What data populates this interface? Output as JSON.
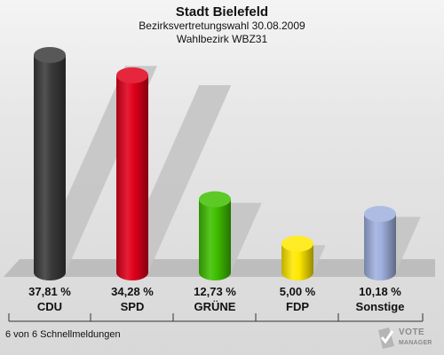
{
  "header": {
    "title": "Stadt Bielefeld",
    "subtitle": "Bezirksvertretungswahl 30.08.2009",
    "district": "Wahlbezirk WBZ31"
  },
  "footer": {
    "note": "6 von 6 Schnellmeldungen"
  },
  "brand": {
    "line1": "VOTE",
    "line2": "MANAGER"
  },
  "chart_data": {
    "type": "bar",
    "categories": [
      "CDU",
      "SPD",
      "GRÜNE",
      "FDP",
      "Sonstige"
    ],
    "values": [
      37.81,
      34.28,
      12.73,
      5.0,
      10.18
    ],
    "value_labels": [
      "37,81 %",
      "34,28 %",
      "12,73 %",
      "5,00 %",
      "10,18 %"
    ],
    "colors": [
      "#3a3a3a",
      "#e0001b",
      "#3fbf00",
      "#ffe800",
      "#9fb0de"
    ],
    "ylim": [
      0,
      37.81
    ],
    "grid": false,
    "legend": "none"
  }
}
